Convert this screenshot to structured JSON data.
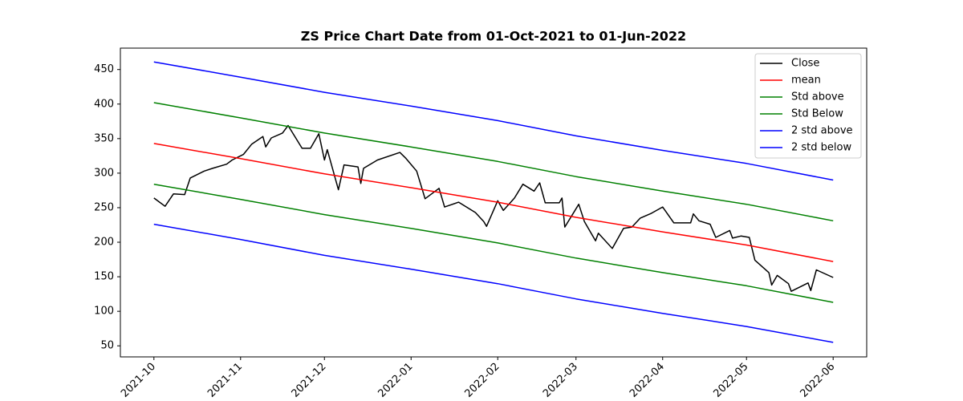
{
  "chart_data": {
    "type": "line",
    "title": "ZS Price Chart Date from 01-Oct-2021 to 01-Jun-2022",
    "xlim": [
      "2021-09-19",
      "2022-06-13"
    ],
    "xticks": [
      "2021-10",
      "2021-11",
      "2021-12",
      "2022-01",
      "2022-02",
      "2022-03",
      "2022-04",
      "2022-05",
      "2022-06"
    ],
    "ylim": [
      34,
      481
    ],
    "yticks": [
      50,
      100,
      150,
      200,
      250,
      300,
      350,
      400,
      450
    ],
    "legend": "upper right",
    "series": [
      {
        "name": "Close",
        "color": "#000000",
        "x": [
          "2021-10-01",
          "2021-10-05",
          "2021-10-08",
          "2021-10-12",
          "2021-10-14",
          "2021-10-19",
          "2021-10-22",
          "2021-10-27",
          "2021-10-29",
          "2021-11-02",
          "2021-11-05",
          "2021-11-09",
          "2021-11-10",
          "2021-11-12",
          "2021-11-16",
          "2021-11-18",
          "2021-11-23",
          "2021-11-26",
          "2021-11-29",
          "2021-12-01",
          "2021-12-02",
          "2021-12-06",
          "2021-12-08",
          "2021-12-13",
          "2021-12-14",
          "2021-12-15",
          "2021-12-20",
          "2021-12-28",
          "2021-12-30",
          "2022-01-03",
          "2022-01-06",
          "2022-01-11",
          "2022-01-13",
          "2022-01-18",
          "2022-01-24",
          "2022-01-27",
          "2022-01-28",
          "2022-02-01",
          "2022-02-03",
          "2022-02-07",
          "2022-02-10",
          "2022-02-14",
          "2022-02-16",
          "2022-02-18",
          "2022-02-23",
          "2022-02-24",
          "2022-02-25",
          "2022-03-02",
          "2022-03-04",
          "2022-03-08",
          "2022-03-09",
          "2022-03-14",
          "2022-03-18",
          "2022-03-21",
          "2022-03-24",
          "2022-03-28",
          "2022-04-01",
          "2022-04-05",
          "2022-04-11",
          "2022-04-12",
          "2022-04-14",
          "2022-04-18",
          "2022-04-20",
          "2022-04-25",
          "2022-04-26",
          "2022-04-29",
          "2022-05-02",
          "2022-05-04",
          "2022-05-09",
          "2022-05-10",
          "2022-05-12",
          "2022-05-16",
          "2022-05-17",
          "2022-05-23",
          "2022-05-24",
          "2022-05-26",
          "2022-06-01"
        ],
        "values": [
          264,
          252,
          270,
          269,
          293,
          303,
          307,
          313,
          319,
          327,
          342,
          353,
          338,
          351,
          358,
          369,
          336,
          336,
          357,
          319,
          334,
          276,
          312,
          309,
          285,
          307,
          319,
          330,
          322,
          303,
          263,
          278,
          251,
          258,
          243,
          230,
          223,
          260,
          246,
          264,
          284,
          274,
          286,
          257,
          257,
          264,
          222,
          255,
          230,
          202,
          213,
          191,
          220,
          222,
          235,
          242,
          251,
          228,
          228,
          241,
          231,
          226,
          207,
          217,
          206,
          209,
          207,
          174,
          156,
          138,
          152,
          140,
          129,
          141,
          130,
          160,
          149
        ]
      },
      {
        "name": "mean",
        "color": "#ff0000",
        "x": [
          "2021-10-01",
          "2021-11-01",
          "2021-12-01",
          "2022-01-01",
          "2022-02-01",
          "2022-03-01",
          "2022-04-01",
          "2022-05-01",
          "2022-06-01"
        ],
        "values": [
          343,
          321,
          299,
          279,
          258,
          236,
          215,
          196,
          172
        ]
      },
      {
        "name": "Std above",
        "color": "#008000",
        "x": [
          "2021-10-01",
          "2021-11-01",
          "2021-12-01",
          "2022-01-01",
          "2022-02-01",
          "2022-03-01",
          "2022-04-01",
          "2022-05-01",
          "2022-06-01"
        ],
        "values": [
          402,
          380,
          358,
          338,
          317,
          295,
          274,
          255,
          231
        ]
      },
      {
        "name": "Std Below",
        "color": "#008000",
        "x": [
          "2021-10-01",
          "2021-11-01",
          "2021-12-01",
          "2022-01-01",
          "2022-02-01",
          "2022-03-01",
          "2022-04-01",
          "2022-05-01",
          "2022-06-01"
        ],
        "values": [
          284,
          262,
          240,
          220,
          199,
          177,
          156,
          137,
          113
        ]
      },
      {
        "name": "2 std above",
        "color": "#0000ff",
        "x": [
          "2021-10-01",
          "2021-11-01",
          "2021-12-01",
          "2022-01-01",
          "2022-02-01",
          "2022-03-01",
          "2022-04-01",
          "2022-05-01",
          "2022-06-01"
        ],
        "values": [
          461,
          439,
          417,
          397,
          376,
          354,
          333,
          314,
          290
        ]
      },
      {
        "name": "2 std below",
        "color": "#0000ff",
        "x": [
          "2021-10-01",
          "2021-11-01",
          "2021-12-01",
          "2022-01-01",
          "2022-02-01",
          "2022-03-01",
          "2022-04-01",
          "2022-05-01",
          "2022-06-01"
        ],
        "values": [
          226,
          204,
          181,
          161,
          140,
          118,
          97,
          78,
          55
        ]
      }
    ]
  }
}
